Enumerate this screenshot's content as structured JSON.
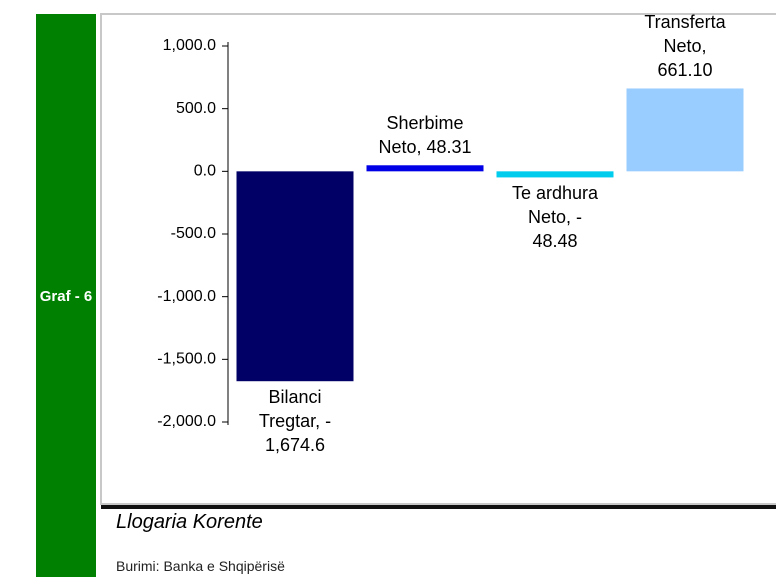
{
  "chart_data": {
    "type": "bar",
    "tag": "Graf - 6",
    "title": "Llogaria Korente",
    "source": "Burimi: Banka e Shqipërisë",
    "values": [
      -1674.6,
      48.31,
      -48.48,
      661.1
    ],
    "value_labels": [
      "Bilanci\nTregtar, -\n1,674.6",
      "Sherbime\nNeto, 48.31",
      "Te ardhura\nNeto, -\n48.48",
      "Transferta\nNeto,\n661.10"
    ],
    "colors": [
      "#000066",
      "#0000e6",
      "#00ccee",
      "#99ccff"
    ],
    "ylim": [
      -2000,
      1000
    ],
    "yticks": [
      {
        "value": 1000,
        "label": "1,000.0"
      },
      {
        "value": 500,
        "label": "500.0"
      },
      {
        "value": 0,
        "label": "0.0"
      },
      {
        "value": -500,
        "label": "-500.0"
      },
      {
        "value": -1000,
        "label": "-1,000.0"
      },
      {
        "value": -1500,
        "label": "-1,500.0"
      },
      {
        "value": -2000,
        "label": "-2,000.0"
      }
    ]
  }
}
